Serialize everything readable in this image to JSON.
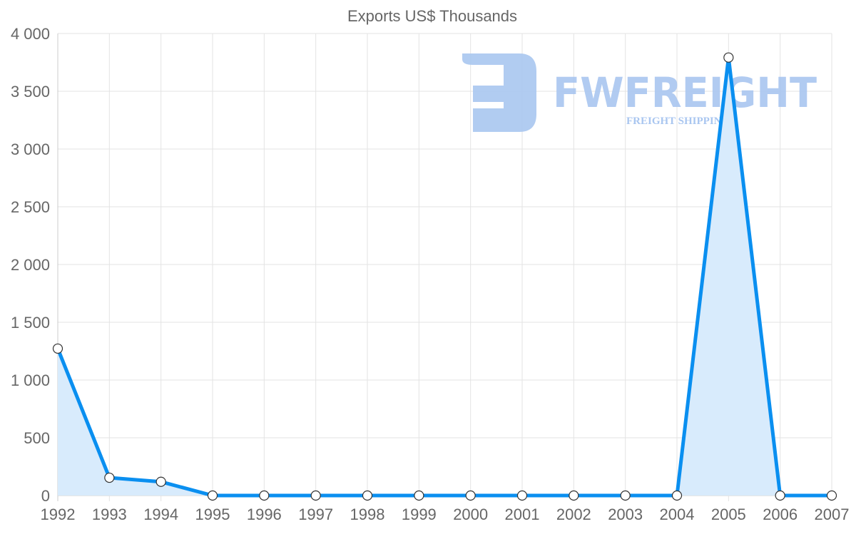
{
  "chart_data": {
    "type": "line",
    "title": "Exports US$ Thousands",
    "xlabel": "",
    "ylabel": "",
    "categories": [
      "1992",
      "1993",
      "1994",
      "1995",
      "1996",
      "1997",
      "1998",
      "1999",
      "2000",
      "2001",
      "2002",
      "2003",
      "2004",
      "2005",
      "2006",
      "2007"
    ],
    "series": [
      {
        "name": "Exports US$ Thousands",
        "values": [
          1272,
          154,
          119,
          0,
          0,
          0,
          0,
          0,
          0,
          0,
          0,
          0,
          0,
          3792,
          0,
          0
        ]
      }
    ],
    "ylim": [
      0,
      4000
    ],
    "yticks": [
      0,
      500,
      1000,
      1500,
      2000,
      2500,
      3000,
      3500,
      4000
    ],
    "ytick_labels": [
      "0",
      "500",
      "1 000",
      "1 500",
      "2 000",
      "2 500",
      "3 000",
      "3 500",
      "4 000"
    ],
    "grid": true,
    "line_color": "#0a8ff0",
    "fill_color": "#d8ebfc"
  },
  "watermark": {
    "brand": "FWFREIGHT",
    "tagline": "FREIGHT SHIPPING"
  }
}
